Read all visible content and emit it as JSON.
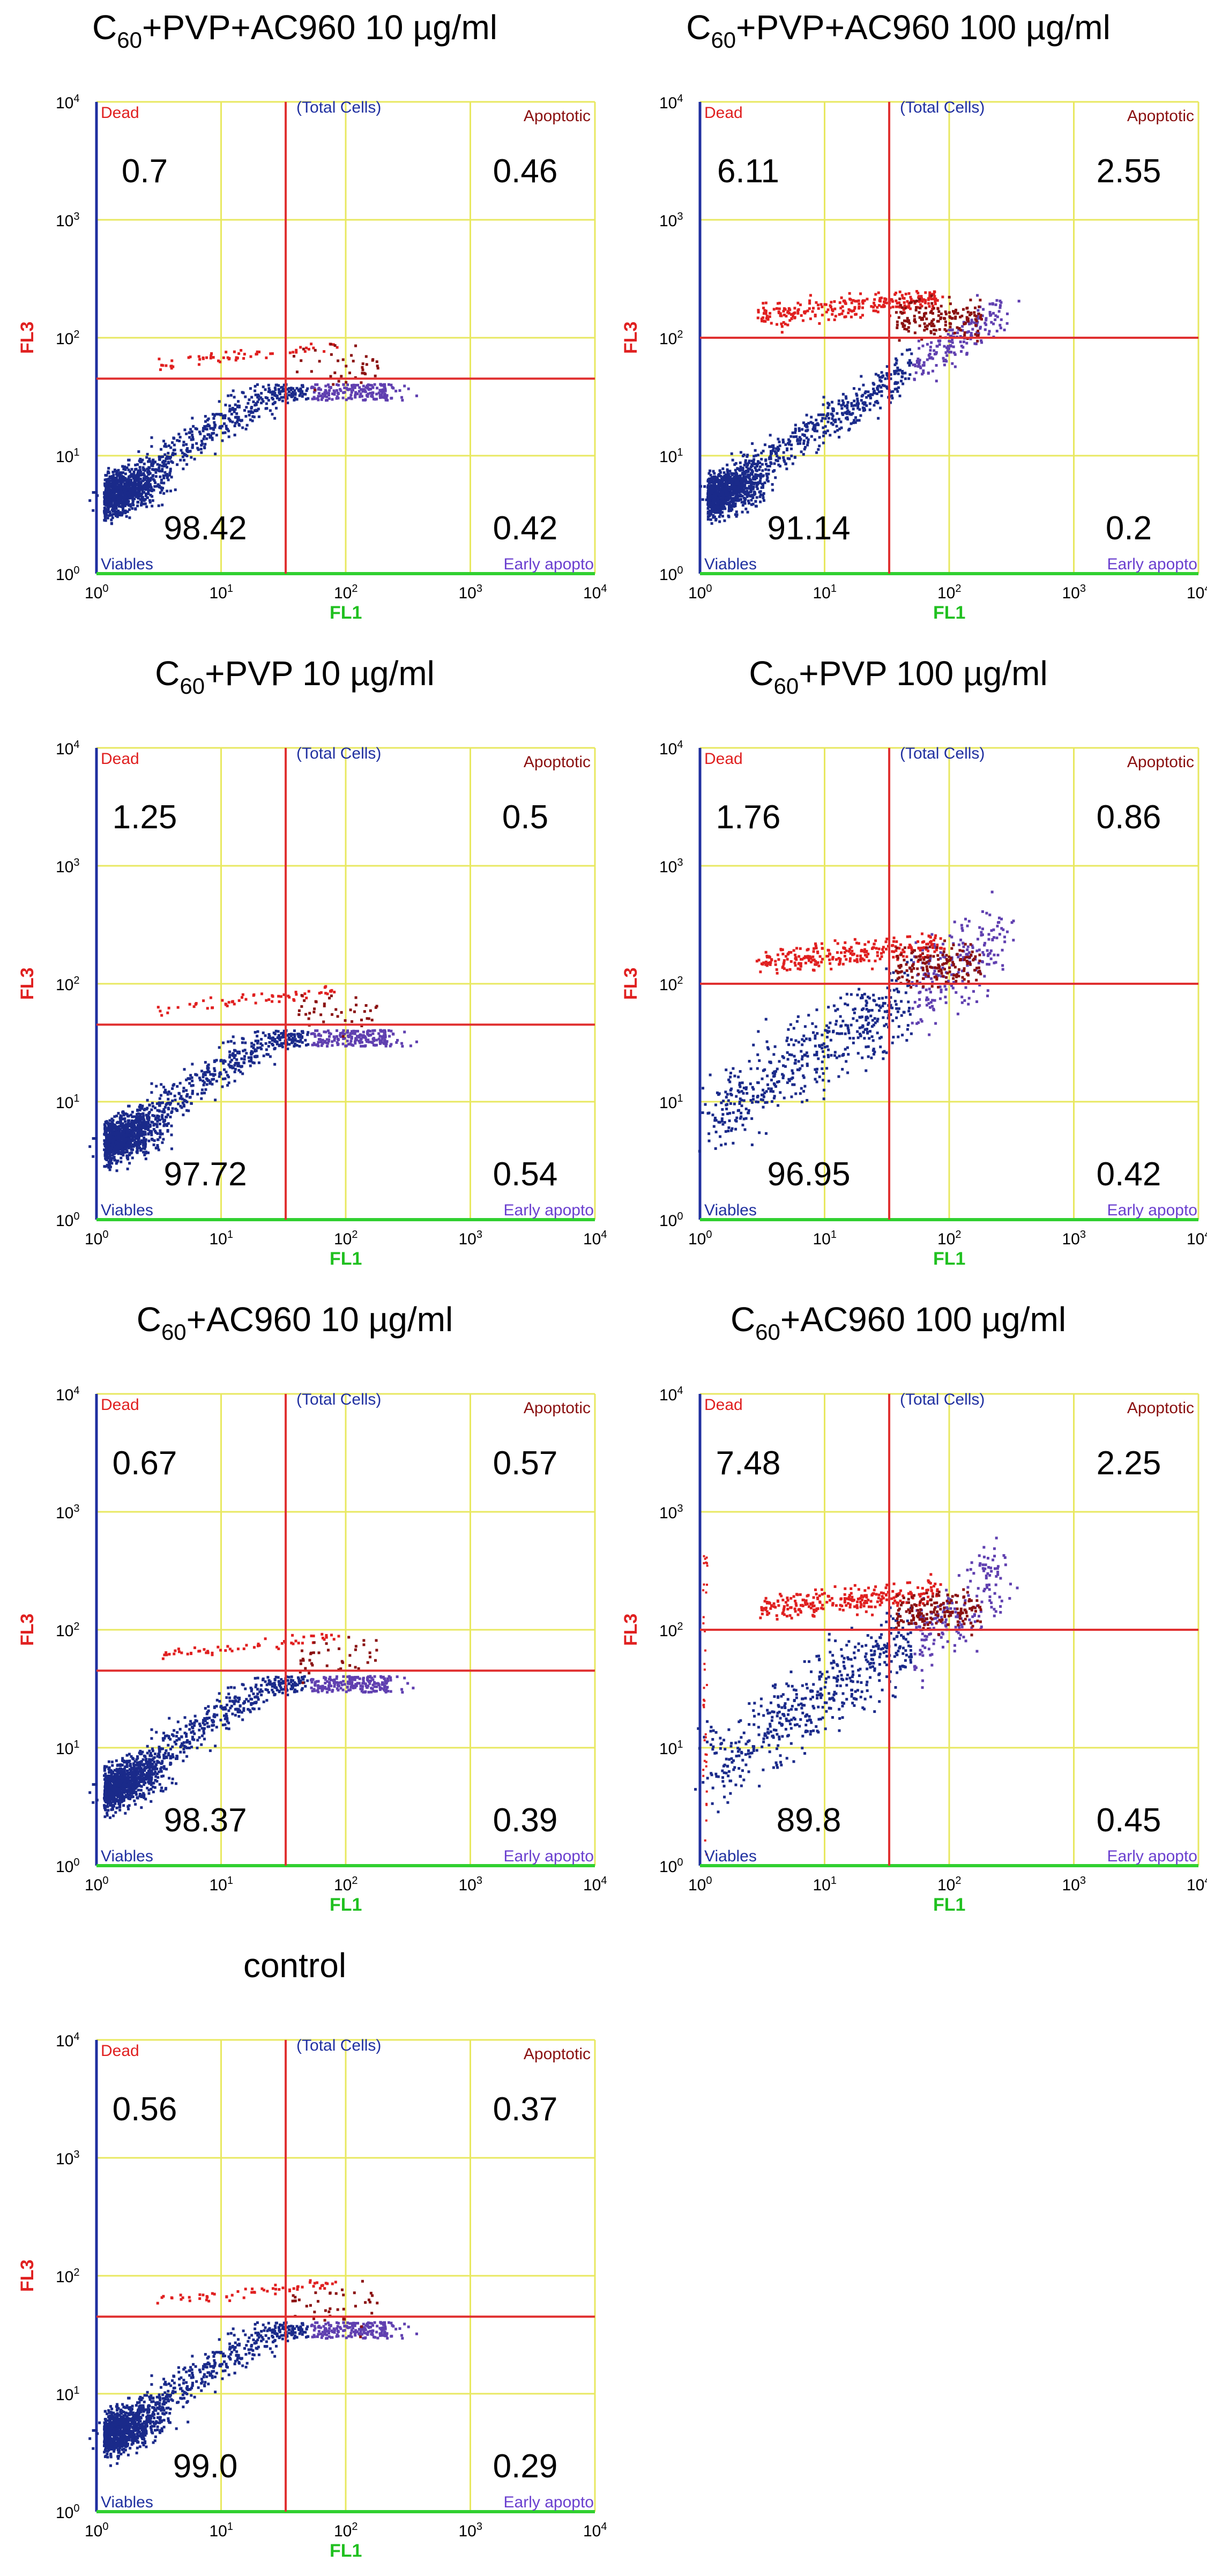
{
  "chart_data": [
    {
      "type": "scatter",
      "title_base": "C",
      "title_sub": "60",
      "title_rest": "+PVP+AC960 10 µg/ml",
      "xlabel": "FL1",
      "ylabel": "FL3",
      "xlim": [
        1,
        10000
      ],
      "ylim": [
        1,
        10000
      ],
      "x_scale": "log",
      "y_scale": "log",
      "gate_x": 33,
      "gate_y": 45,
      "quadrant_labels": {
        "dead": "Dead",
        "top": "(Total Cells)",
        "apoptotic": "Apoptotic",
        "viable": "Viables",
        "early": "Early apopto"
      },
      "quadrants": {
        "dead": "0.7",
        "apoptotic": "0.46",
        "viable": "98.42",
        "early": "0.42"
      },
      "clusters": {
        "live_dense": true,
        "dead_band": "low",
        "dead_spread": false
      }
    },
    {
      "type": "scatter",
      "title_base": "C",
      "title_sub": "60",
      "title_rest": "+PVP+AC960 100 µg/ml",
      "xlabel": "FL1",
      "ylabel": "FL3",
      "xlim": [
        1,
        10000
      ],
      "ylim": [
        1,
        10000
      ],
      "x_scale": "log",
      "y_scale": "log",
      "gate_x": 33,
      "gate_y": 100,
      "quadrant_labels": {
        "dead": "Dead",
        "top": "(Total Cells)",
        "apoptotic": "Apoptotic",
        "viable": "Viables",
        "early": "Early apopto"
      },
      "quadrants": {
        "dead": "6.11",
        "apoptotic": "2.55",
        "viable": "91.14",
        "early": "0.2"
      },
      "clusters": {
        "live_dense": true,
        "dead_band": "high",
        "dead_spread": false
      }
    },
    {
      "type": "scatter",
      "title_base": "C",
      "title_sub": "60",
      "title_rest": "+PVP 10 µg/ml",
      "xlabel": "FL1",
      "ylabel": "FL3",
      "xlim": [
        1,
        10000
      ],
      "ylim": [
        1,
        10000
      ],
      "x_scale": "log",
      "y_scale": "log",
      "gate_x": 33,
      "gate_y": 45,
      "quadrant_labels": {
        "dead": "Dead",
        "top": "(Total Cells)",
        "apoptotic": "Apoptotic",
        "viable": "Viables",
        "early": "Early apopto"
      },
      "quadrants": {
        "dead": "1.25",
        "apoptotic": "0.5",
        "viable": "97.72",
        "early": "0.54"
      },
      "clusters": {
        "live_dense": true,
        "dead_band": "low",
        "dead_spread": false
      }
    },
    {
      "type": "scatter",
      "title_base": "C",
      "title_sub": "60",
      "title_rest": "+PVP 100 µg/ml",
      "xlabel": "FL1",
      "ylabel": "FL3",
      "xlim": [
        1,
        10000
      ],
      "ylim": [
        1,
        10000
      ],
      "x_scale": "log",
      "y_scale": "log",
      "gate_x": 33,
      "gate_y": 100,
      "quadrant_labels": {
        "dead": "Dead",
        "top": "(Total Cells)",
        "apoptotic": "Apoptotic",
        "viable": "Viables",
        "early": "Early apopto"
      },
      "quadrants": {
        "dead": "1.76",
        "apoptotic": "0.86",
        "viable": "96.95",
        "early": "0.42"
      },
      "clusters": {
        "live_dense": false,
        "dead_band": "high",
        "dead_spread": false
      }
    },
    {
      "type": "scatter",
      "title_base": "C",
      "title_sub": "60",
      "title_rest": "+AC960 10 µg/ml",
      "xlabel": "FL1",
      "ylabel": "FL3",
      "xlim": [
        1,
        10000
      ],
      "ylim": [
        1,
        10000
      ],
      "x_scale": "log",
      "y_scale": "log",
      "gate_x": 33,
      "gate_y": 45,
      "quadrant_labels": {
        "dead": "Dead",
        "top": "(Total Cells)",
        "apoptotic": "Apoptotic",
        "viable": "Viables",
        "early": "Early apopto"
      },
      "quadrants": {
        "dead": "0.67",
        "apoptotic": "0.57",
        "viable": "98.37",
        "early": "0.39"
      },
      "clusters": {
        "live_dense": true,
        "dead_band": "low",
        "dead_spread": false
      }
    },
    {
      "type": "scatter",
      "title_base": "C",
      "title_sub": "60",
      "title_rest": "+AC960 100 µg/ml",
      "xlabel": "FL1",
      "ylabel": "FL3",
      "xlim": [
        1,
        10000
      ],
      "ylim": [
        1,
        10000
      ],
      "x_scale": "log",
      "y_scale": "log",
      "gate_x": 33,
      "gate_y": 100,
      "quadrant_labels": {
        "dead": "Dead",
        "top": "(Total Cells)",
        "apoptotic": "Apoptotic",
        "viable": "Viables",
        "early": "Early apopto"
      },
      "quadrants": {
        "dead": "7.48",
        "apoptotic": "2.25",
        "viable": "89.8",
        "early": "0.45"
      },
      "clusters": {
        "live_dense": false,
        "dead_band": "high",
        "dead_spread": true
      }
    },
    {
      "type": "scatter",
      "title_base": "control",
      "title_sub": "",
      "title_rest": "",
      "xlabel": "FL1",
      "ylabel": "FL3",
      "xlim": [
        1,
        10000
      ],
      "ylim": [
        1,
        10000
      ],
      "x_scale": "log",
      "y_scale": "log",
      "gate_x": 33,
      "gate_y": 45,
      "quadrant_labels": {
        "dead": "Dead",
        "top": "(Total Cells)",
        "apoptotic": "Apoptotic",
        "viable": "Viables",
        "early": "Early apopto"
      },
      "quadrants": {
        "dead": "0.56",
        "apoptotic": "0.37",
        "viable": "99.0",
        "early": "0.29"
      },
      "clusters": {
        "live_dense": true,
        "dead_band": "low",
        "dead_spread": false
      }
    }
  ],
  "axis_ticks": [
    {
      "base": "10",
      "exp": "0"
    },
    {
      "base": "10",
      "exp": "1"
    },
    {
      "base": "10",
      "exp": "2"
    },
    {
      "base": "10",
      "exp": "3"
    },
    {
      "base": "10",
      "exp": "4"
    }
  ],
  "colors": {
    "grid": "#e8e860",
    "gate": "#e03030",
    "axis_bottom": "#30d030",
    "axis_left": "#2030a0",
    "live": "#1a2a8a",
    "dead": "#e02020",
    "apoptotic": "#8a1010",
    "early": "#6040b0",
    "dead_label": "#e02020",
    "apoptotic_label": "#8a1010",
    "viable_label": "#2030a0",
    "early_label": "#6a3fcf",
    "fl1": "#20c020",
    "fl3": "#e02020"
  }
}
